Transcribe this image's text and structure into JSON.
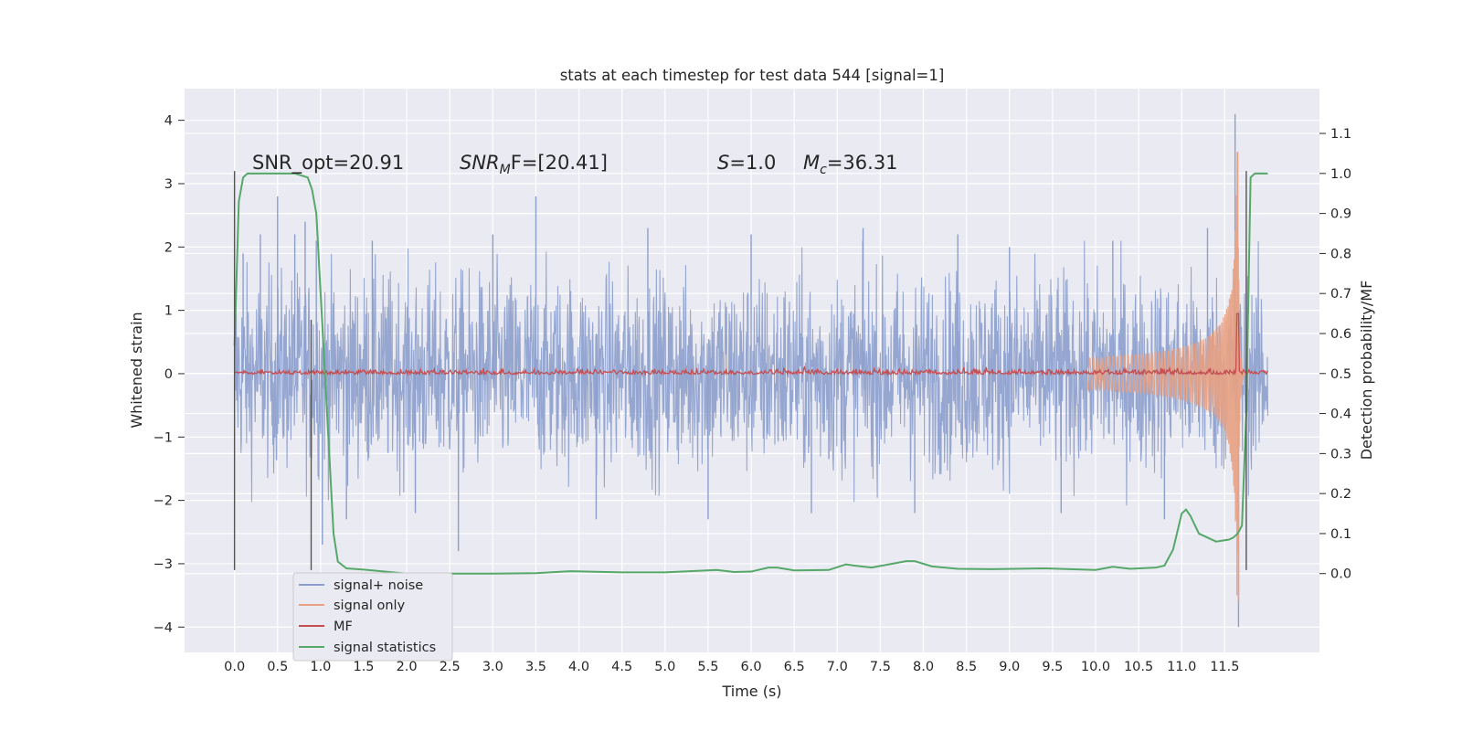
{
  "chart_data": {
    "type": "line",
    "title": "stats at each timestep for test data 544 [signal=1]",
    "xlabel": "Time (s)",
    "ylabel": "Whitened strain",
    "y2label": "Detection probability/MF",
    "xlim": [
      -0.58,
      12.6
    ],
    "ylim": [
      -4.4,
      4.5
    ],
    "y2lim": [
      -0.197,
      1.212
    ],
    "x_ticks": [
      "0.0",
      "0.5",
      "1.0",
      "1.5",
      "2.0",
      "2.5",
      "3.0",
      "3.5",
      "4.0",
      "4.5",
      "5.0",
      "5.5",
      "6.0",
      "6.5",
      "7.0",
      "7.5",
      "8.0",
      "8.5",
      "9.0",
      "9.5",
      "10.0",
      "10.5",
      "11.0",
      "11.5"
    ],
    "y_ticks": [
      "4",
      "3",
      "2",
      "1",
      "0",
      "−1",
      "−2",
      "−3",
      "−4"
    ],
    "y2_ticks": [
      "1.1",
      "1.0",
      "0.9",
      "0.8",
      "0.7",
      "0.6",
      "0.5",
      "0.4",
      "0.3",
      "0.2",
      "0.1",
      "0.0"
    ],
    "grid": true,
    "legend_position": "lower-left",
    "annotations": {
      "snr_opt": "SNR_opt=20.91",
      "snr_mf": "F=[20.41]",
      "s_value": "=1.0",
      "mc_value": "=36.31"
    },
    "vertical_markers": [
      {
        "x": 0.0,
        "y_range": [
          -3.1,
          3.2
        ]
      },
      {
        "x": 0.89,
        "y_range": [
          -3.1,
          0.85
        ]
      },
      {
        "x": 11.75,
        "y_range": [
          -3.1,
          3.2
        ]
      }
    ],
    "series": [
      {
        "name": "signal+ noise",
        "color": "#8c9fcc",
        "axis": "left",
        "kind": "noise-band",
        "t_range": [
          0.0,
          12.0
        ],
        "core_amplitude": 1.2,
        "peak_x": [
          0.1,
          0.3,
          0.5,
          0.7,
          0.82,
          0.95,
          1.02,
          1.3,
          1.6,
          2.1,
          2.6,
          3.0,
          3.5,
          4.2,
          4.8,
          5.5,
          6.0,
          6.7,
          7.3,
          7.9,
          8.4,
          9.0,
          9.6,
          10.2,
          10.8,
          11.3,
          11.62,
          11.66
        ],
        "peak_y": [
          1.9,
          2.2,
          2.8,
          2.2,
          2.4,
          2.1,
          -2.7,
          -2.3,
          2.1,
          -2.2,
          -2.8,
          2.2,
          2.8,
          -2.3,
          2.3,
          -2.3,
          2.2,
          -2.2,
          2.3,
          -2.2,
          2.2,
          2.0,
          -2.2,
          2.1,
          -2.3,
          2.3,
          4.1,
          -4.0
        ]
      },
      {
        "name": "signal only",
        "color": "#e8a183",
        "axis": "left",
        "kind": "chirp",
        "t_range": [
          9.9,
          11.75
        ],
        "merger_time": 11.65,
        "peak_amplitude": [
          3.5,
          -3.6
        ]
      },
      {
        "name": "MF",
        "color": "#c44e52",
        "axis": "right",
        "kind": "mf",
        "t_range": [
          0.0,
          12.0
        ],
        "baseline": 0.5,
        "spike_x": 11.65,
        "spike_y": 0.65
      },
      {
        "name": "signal statistics",
        "color": "#55a868",
        "axis": "right",
        "x": [
          0.0,
          0.05,
          0.1,
          0.15,
          0.2,
          0.3,
          0.5,
          0.7,
          0.85,
          0.9,
          0.95,
          1.0,
          1.05,
          1.1,
          1.15,
          1.2,
          1.3,
          1.5,
          2.0,
          3.0,
          3.5,
          3.9,
          4.5,
          5.0,
          5.4,
          5.6,
          5.8,
          6.0,
          6.2,
          6.3,
          6.5,
          6.9,
          7.1,
          7.2,
          7.4,
          7.8,
          7.9,
          8.1,
          8.4,
          8.8,
          9.4,
          10.0,
          10.2,
          10.4,
          10.7,
          10.8,
          10.9,
          11.0,
          11.05,
          11.1,
          11.2,
          11.4,
          11.55,
          11.6,
          11.65,
          11.7,
          11.75,
          11.8,
          11.85,
          11.95,
          12.0
        ],
        "y": [
          0.57,
          0.93,
          0.99,
          1.0,
          1.0,
          1.0,
          1.0,
          1.0,
          0.99,
          0.96,
          0.9,
          0.7,
          0.5,
          0.3,
          0.1,
          0.03,
          0.013,
          0.01,
          0.0,
          0.0,
          0.001,
          0.006,
          0.003,
          0.003,
          0.007,
          0.009,
          0.004,
          0.005,
          0.015,
          0.015,
          0.008,
          0.009,
          0.023,
          0.02,
          0.015,
          0.031,
          0.031,
          0.018,
          0.012,
          0.011,
          0.013,
          0.009,
          0.017,
          0.012,
          0.015,
          0.02,
          0.06,
          0.15,
          0.16,
          0.145,
          0.1,
          0.08,
          0.085,
          0.09,
          0.1,
          0.12,
          0.4,
          0.99,
          1.0,
          1.0,
          1.0
        ]
      }
    ]
  }
}
